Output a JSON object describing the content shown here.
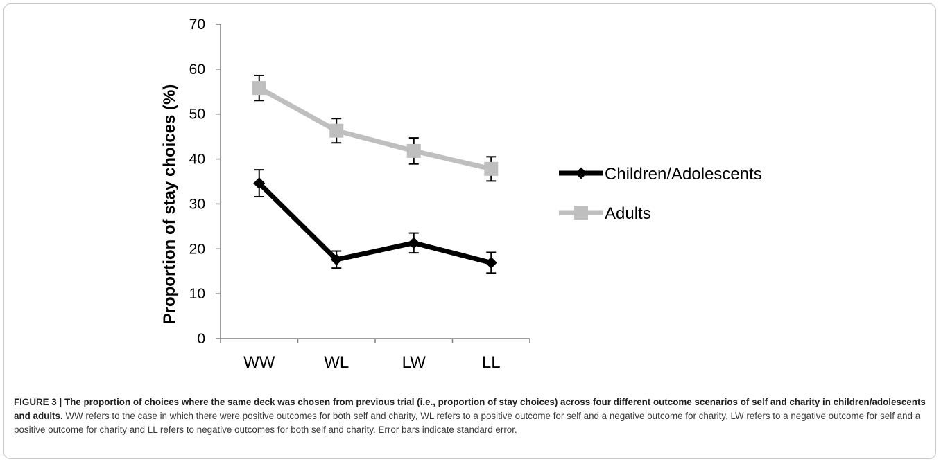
{
  "figure": {
    "caption_lead": "FIGURE 3 | The proportion of choices where the same deck was chosen from previous trial (i.e., proportion of stay choices) across four different outcome scenarios of self and charity in children/adolescents and adults.",
    "caption_body": " WW refers to the case in which there were positive outcomes for both self and charity, WL refers to a positive outcome for self and a negative outcome for charity, LW refers to a negative outcome for self and a positive outcome for charity and LL refers to negative outcomes for both self and charity. Error bars indicate standard error."
  },
  "chart_data": {
    "type": "line",
    "ylabel": "Proportion of stay choices (%)",
    "xlabel": "",
    "categories": [
      "WW",
      "WL",
      "LW",
      "LL"
    ],
    "ylim": [
      0,
      70
    ],
    "yticks": [
      0,
      10,
      20,
      30,
      40,
      50,
      60,
      70
    ],
    "grid": false,
    "legend_position": "right",
    "error_bars": "standard error",
    "series": [
      {
        "name": "Children/Adolescents",
        "values": [
          34.6,
          17.6,
          21.3,
          16.9
        ],
        "errors": [
          3.0,
          1.9,
          2.2,
          2.3
        ],
        "color": "#000000",
        "marker": "diamond"
      },
      {
        "name": "Adults",
        "values": [
          55.8,
          46.3,
          41.8,
          37.8
        ],
        "errors": [
          2.8,
          2.7,
          2.9,
          2.7
        ],
        "color": "#bfbfbf",
        "marker": "square"
      }
    ]
  }
}
